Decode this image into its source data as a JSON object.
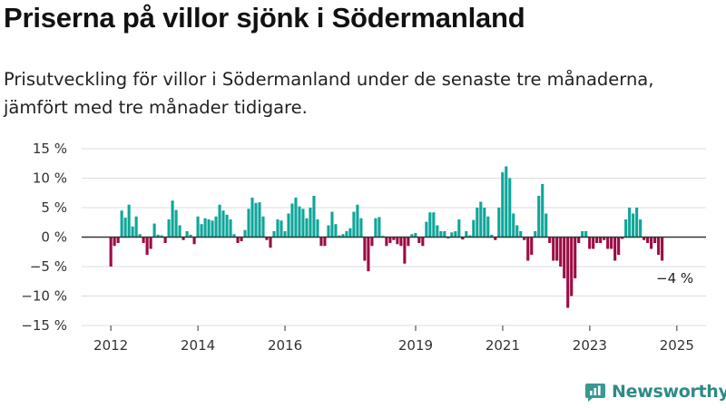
{
  "header": {
    "title": "Priserna på villor sjönk i Södermanland",
    "subtitle": "Prisutveckling för villor i Södermanland under de senaste tre månaderna, jämfört med tre månader tidigare."
  },
  "logo": {
    "text": "Newsworthy"
  },
  "colors": {
    "positive": "#0ea69a",
    "negative": "#9c0b45",
    "grid": "#dcdcdc",
    "zero": "#333333",
    "axis_text": "#333333"
  },
  "annotation": {
    "text": "−4 %"
  },
  "chart_data": {
    "type": "bar",
    "title": "Priserna på villor sjönk i Södermanland",
    "xlabel": "",
    "ylabel": "",
    "ylim": [
      -15,
      15
    ],
    "y_ticks": [
      15,
      10,
      5,
      0,
      -5,
      -10,
      -15
    ],
    "y_tick_labels": [
      "15 %",
      "10 %",
      "5 %",
      "0 %",
      "−5 %",
      "−10 %",
      "−15 %"
    ],
    "x_ticks": [
      2012,
      2014,
      2016,
      2019,
      2021,
      2023,
      2025
    ],
    "x_tick_labels": [
      "2012",
      "2014",
      "2016",
      "2019",
      "2021",
      "2023",
      "2025"
    ],
    "x_range": [
      2011.33,
      2025.67
    ],
    "x_unit": "year",
    "bar_step": 0.0833,
    "first_bar_x": 2012.0,
    "values": [
      -5.0,
      -1.5,
      -1.0,
      4.5,
      3.3,
      5.5,
      1.8,
      3.5,
      0.5,
      -1.0,
      -3.0,
      -2.0,
      2.3,
      0.4,
      0.3,
      -1.0,
      3.0,
      6.2,
      4.6,
      2.0,
      -0.5,
      1.0,
      0.4,
      -1.2,
      3.5,
      2.2,
      3.2,
      3.0,
      2.8,
      3.5,
      5.5,
      4.5,
      3.8,
      3.0,
      0.5,
      -1.0,
      -0.7,
      1.2,
      4.8,
      6.7,
      5.8,
      5.9,
      3.5,
      -0.5,
      -1.8,
      1.0,
      3.0,
      2.8,
      1.0,
      4.0,
      5.7,
      6.7,
      5.2,
      4.8,
      3.2,
      5.0,
      7.0,
      3.0,
      -1.5,
      -1.5,
      2.0,
      4.3,
      2.2,
      0.3,
      0.5,
      1.0,
      1.5,
      4.3,
      5.5,
      3.2,
      -4.0,
      -5.8,
      -1.5,
      3.2,
      3.4,
      0.2,
      -1.5,
      -1.0,
      -0.5,
      -1.2,
      -1.5,
      -4.5,
      -1.5,
      0.5,
      0.7,
      -1.0,
      -1.5,
      2.6,
      4.2,
      4.2,
      2.0,
      1.0,
      1.0,
      -0.2,
      0.8,
      1.0,
      3.0,
      -0.4,
      1.0,
      0.3,
      2.9,
      5.0,
      6.0,
      5.0,
      3.5,
      0.4,
      -0.5,
      5.0,
      11.0,
      12.0,
      10.0,
      4.0,
      2.0,
      1.0,
      -0.5,
      -4.0,
      -3.0,
      1.0,
      7.0,
      9.0,
      4.0,
      -1.0,
      -4.0,
      -4.0,
      -5.0,
      -7.0,
      -12.0,
      -10.0,
      -7.0,
      -1.0,
      1.0,
      1.0,
      -2.0,
      -2.0,
      -1.0,
      -1.0,
      -0.5,
      -2.0,
      -2.0,
      -4.0,
      -3.0,
      -0.3,
      3.0,
      5.0,
      4.0,
      5.0,
      3.0,
      -0.5,
      -1.0,
      -2.0,
      -1.0,
      -3.0,
      -4.0
    ],
    "grid": true,
    "legend": "none"
  }
}
